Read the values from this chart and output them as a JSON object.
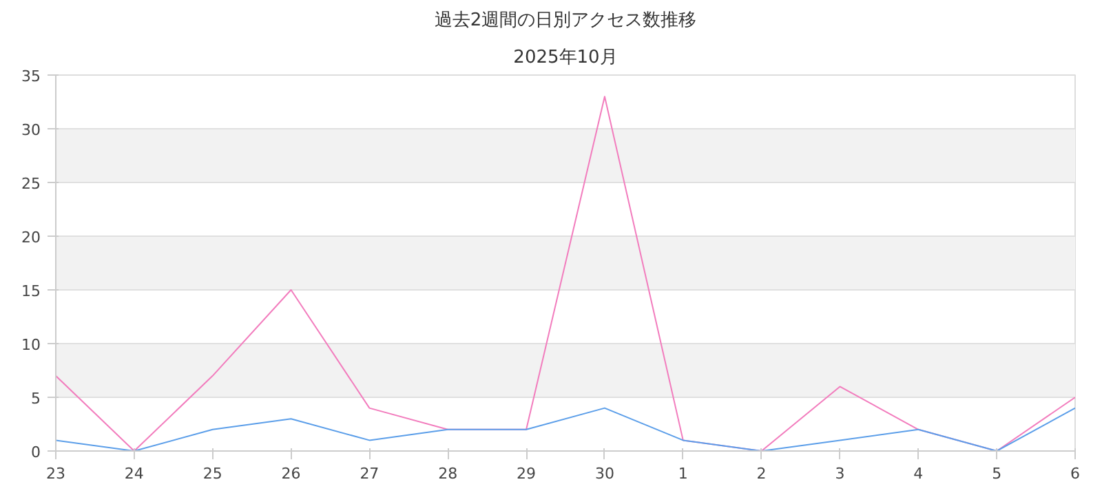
{
  "chart_data": {
    "type": "line",
    "title": "過去2週間の日別アクセス数推移",
    "subtitle": "2025年10月",
    "categories": [
      "23",
      "24",
      "25",
      "26",
      "27",
      "28",
      "29",
      "30",
      "1",
      "2",
      "3",
      "4",
      "5",
      "6"
    ],
    "series": [
      {
        "color": "#f27cbd",
        "values": [
          7,
          0,
          7,
          15,
          4,
          2,
          2,
          33,
          1,
          0,
          6,
          2,
          0,
          5
        ]
      },
      {
        "color": "#5b9ee9",
        "values": [
          1,
          0,
          2,
          3,
          1,
          2,
          2,
          4,
          1,
          0,
          1,
          2,
          0,
          4
        ]
      }
    ],
    "ylim": [
      0,
      35
    ],
    "yticks": [
      0,
      5,
      10,
      15,
      20,
      25,
      30,
      35
    ],
    "grid": "y",
    "marker": "none",
    "line_style": "solid"
  }
}
